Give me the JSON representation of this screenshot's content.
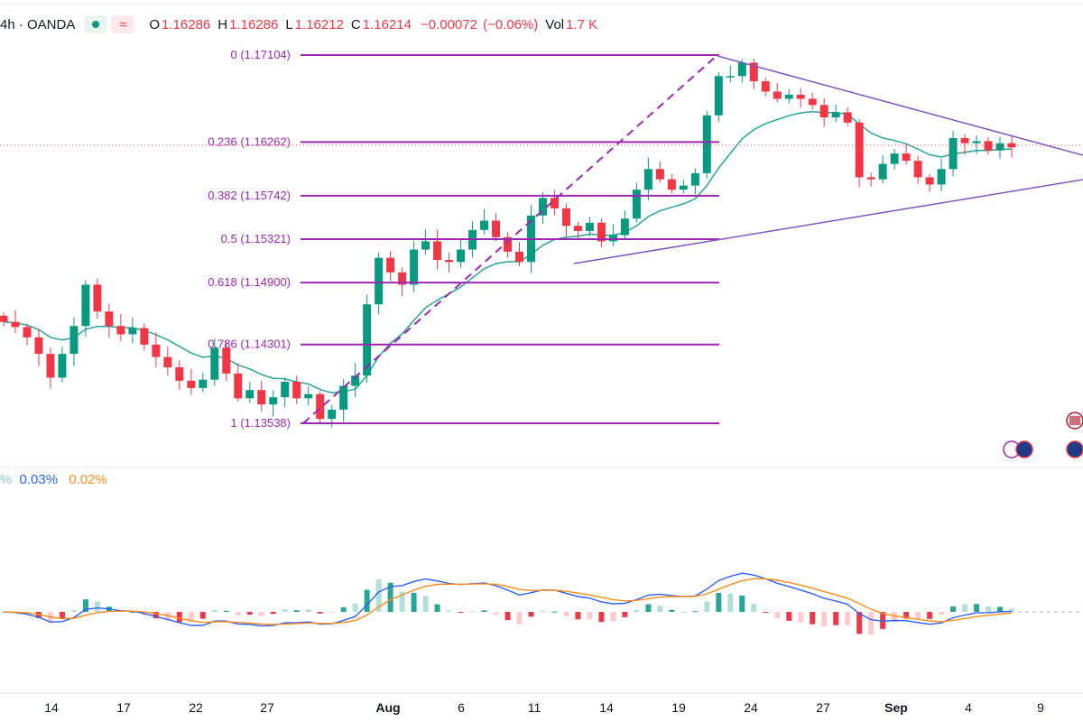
{
  "legend": {
    "symbol": "4h · OANDA",
    "open_key": "O",
    "open": "1.16286",
    "high_key": "H",
    "high": "1.16286",
    "low_key": "L",
    "low": "1.16212",
    "close_key": "C",
    "close": "1.16214",
    "change": "−0.00072",
    "change_pct": "(−0.06%)",
    "volume_key": "Vol",
    "volume": "1.7 K"
  },
  "macd_legend": {
    "histogram": "%",
    "macd": "0.03%",
    "signal": "0.02%"
  },
  "colors": {
    "fib": "#9c27b0",
    "up": "#089981",
    "down": "#f23645",
    "ma": "#26a69a",
    "macd": "#2962ff",
    "signal": "#ff8c1a",
    "trend": "#7e57c2"
  },
  "chart_data": {
    "type": "candlestick",
    "price_range": [
      1.1291,
      1.1736
    ],
    "fib_levels": [
      {
        "label": "0 (1.17104)",
        "value": 1.17104
      },
      {
        "label": "0.236 (1.16262)",
        "value": 1.16262
      },
      {
        "label": "0.382 (1.15742)",
        "value": 1.15742
      },
      {
        "label": "0.5 (1.15321)",
        "value": 1.15321
      },
      {
        "label": "0.618 (1.14900)",
        "value": 1.149
      },
      {
        "label": "0.786 (1.14301)",
        "value": 1.14301
      },
      {
        "label": "1 (1.13538)",
        "value": 1.13538
      }
    ],
    "x_ticks": [
      "14",
      "17",
      "22",
      "27",
      "Aug",
      "6",
      "11",
      "14",
      "19",
      "24",
      "27",
      "Sep",
      "4",
      "9"
    ],
    "close_path": [
      1.1452,
      1.1447,
      1.1437,
      1.1421,
      1.1398,
      1.1421,
      1.1448,
      1.1488,
      1.1462,
      1.1448,
      1.144,
      1.1446,
      1.143,
      1.1418,
      1.1408,
      1.1395,
      1.1388,
      1.1396,
      1.1427,
      1.1402,
      1.1378,
      1.1386,
      1.1372,
      1.1379,
      1.1394,
      1.1378,
      1.1382,
      1.1358,
      1.1367,
      1.139,
      1.14,
      1.1469,
      1.1514,
      1.15,
      1.1488,
      1.1522,
      1.153,
      1.1512,
      1.151,
      1.1522,
      1.1541,
      1.155,
      1.1534,
      1.152,
      1.151,
      1.1555,
      1.1572,
      1.1562,
      1.1545,
      1.154,
      1.1548,
      1.153,
      1.1536,
      1.1552,
      1.158,
      1.16,
      1.159,
      1.158,
      1.1584,
      1.1596,
      1.1652,
      1.169,
      1.169,
      1.1703,
      1.1685,
      1.1675,
      1.1668,
      1.1672,
      1.1668,
      1.1662,
      1.165,
      1.1655,
      1.1645,
      1.1592,
      1.159,
      1.1605,
      1.1615,
      1.1608,
      1.1592,
      1.1585,
      1.16,
      1.163,
      1.1625,
      1.1627,
      1.1618,
      1.1625,
      1.1621
    ]
  }
}
